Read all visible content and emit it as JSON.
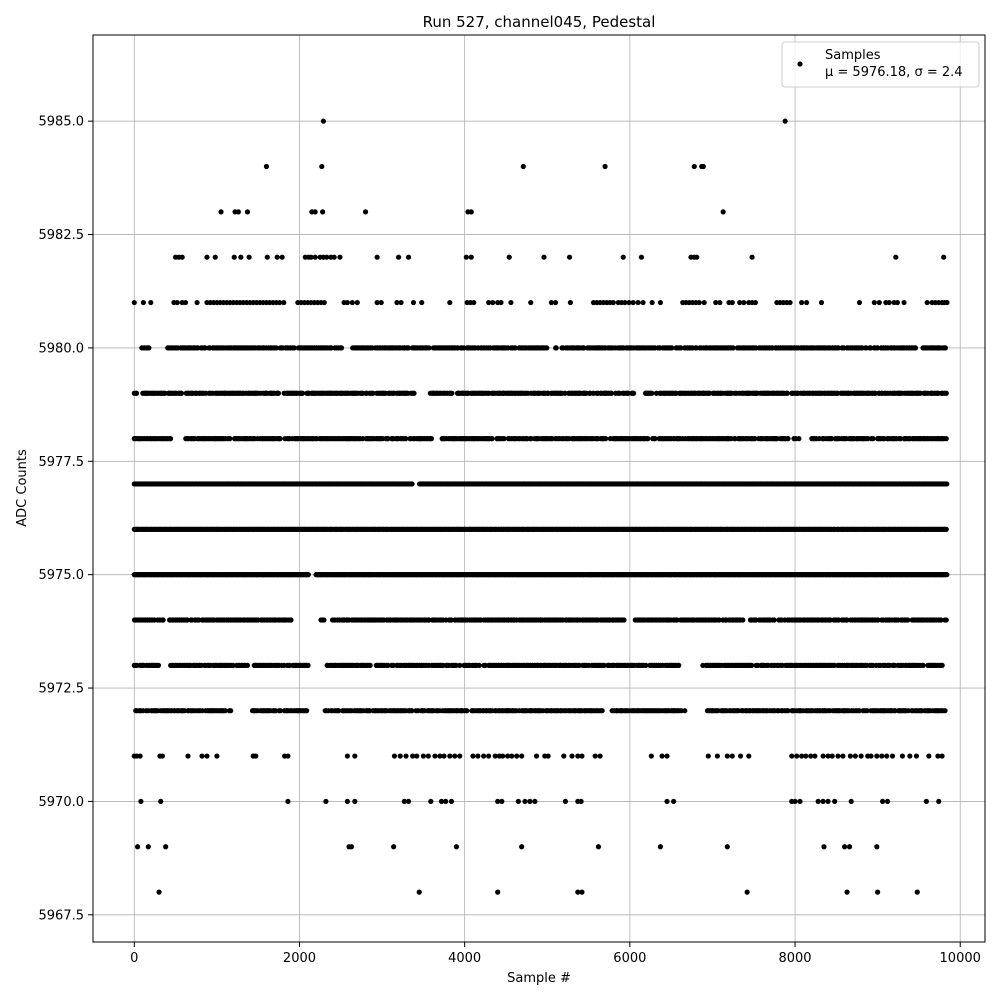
{
  "chart_data": {
    "type": "scatter",
    "title": "Run 527, channel045, Pedestal",
    "xlabel": "Sample #",
    "ylabel": "ADC Counts",
    "xlim": [
      -500,
      10300
    ],
    "ylim": [
      5966.9,
      5986.9
    ],
    "x_ticks": [
      0,
      2000,
      4000,
      6000,
      8000,
      10000
    ],
    "x_tick_labels": [
      "0",
      "2000",
      "4000",
      "6000",
      "8000",
      "10000"
    ],
    "y_ticks": [
      5967.5,
      5970.0,
      5972.5,
      5975.0,
      5977.5,
      5980.0,
      5982.5,
      5985.0
    ],
    "y_tick_labels": [
      "5967.5",
      "5970.0",
      "5972.5",
      "5975.0",
      "5977.5",
      "5980.0",
      "5982.5",
      "5985.0"
    ],
    "grid": true,
    "legend": {
      "placement": "top-right",
      "entries": [
        "Samples"
      ],
      "stats_label": "μ = 5976.18, σ = 2.4"
    },
    "series": [
      {
        "name": "Samples",
        "color": "#000000",
        "x_range": [
          0,
          9840
        ],
        "mean": 5976.18,
        "sigma": 2.4,
        "levels": [
          {
            "y": 5968,
            "x": [
              300,
              3450,
              4400,
              5370,
              5420,
              7420,
              8630,
              9000,
              9480
            ]
          },
          {
            "y": 5969,
            "x": [
              40,
              170,
              380,
              2600,
              2630,
              3140,
              3900,
              4690,
              5620,
              6370,
              7180,
              8350,
              8600,
              8660,
              8990
            ]
          },
          {
            "y": 5970,
            "x": [
              80,
              320,
              1860,
              2320,
              2580,
              2670,
              3270,
              3320,
              3590,
              3720,
              3770,
              3840,
              4400,
              4450,
              4650,
              4730,
              4790,
              4850,
              5220,
              5370,
              5410,
              6450,
              6530,
              7960,
              8000,
              8060,
              8280,
              8340,
              8400,
              8480,
              8680,
              9060,
              9120,
              9590,
              9740
            ]
          },
          {
            "y": 5971,
            "x": [
              0,
              30,
              70,
              310,
              340,
              650,
              820,
              880,
              1000,
              1440,
              1470,
              1820,
              1860,
              2580,
              2670,
              3150,
              3220,
              3290,
              3370,
              3420,
              3500,
              3560,
              3640,
              3700,
              3750,
              3820,
              3880,
              3940,
              4100,
              4160,
              4230,
              4290,
              4370,
              4420,
              4460,
              4520,
              4570,
              4630,
              4690,
              4870,
              4970,
              5010,
              5200,
              5300,
              5370,
              5420,
              5580,
              5640,
              6260,
              6390,
              6450,
              6950,
              7060,
              7180,
              7240,
              7340,
              7440,
              7960,
              8020,
              8080,
              8130,
              8190,
              8240,
              8340,
              8400,
              8450,
              8520,
              8580,
              8670,
              8730,
              8800,
              8880,
              8920,
              8990,
              9050,
              9110,
              9180,
              9300,
              9390,
              9470,
              9620,
              9730,
              9780
            ]
          },
          {
            "y": 5972,
            "x_start": 0,
            "x_end": 9820,
            "density": "dense",
            "gaps": [
              [
                1180,
                1420
              ],
              [
                2110,
                2310
              ],
              [
                5700,
                5780
              ],
              [
                6680,
                6920
              ],
              [
                7920,
                7950
              ]
            ]
          },
          {
            "y": 5973,
            "x_start": 0,
            "x_end": 9840,
            "density": "dense",
            "gaps": [
              [
                300,
                420
              ],
              [
                1380,
                1450
              ],
              [
                2120,
                2330
              ],
              [
                6600,
                6880
              ]
            ]
          },
          {
            "y": 5974,
            "x_start": 0,
            "x_end": 9840,
            "density": "dense",
            "gaps": [
              [
                360,
                420
              ],
              [
                1900,
                2250
              ],
              [
                2310,
                2400
              ],
              [
                5950,
                6040
              ]
            ]
          },
          {
            "y": 5975,
            "x_start": 0,
            "x_end": 9840,
            "density": "very-dense",
            "gaps": [
              [
                2120,
                2200
              ]
            ]
          },
          {
            "y": 5976,
            "x_start": 0,
            "x_end": 9840,
            "density": "very-dense",
            "gaps": []
          },
          {
            "y": 5977,
            "x_start": 0,
            "x_end": 9840,
            "density": "very-dense",
            "gaps": [
              [
                3380,
                3440
              ]
            ]
          },
          {
            "y": 5978,
            "x_start": 0,
            "x_end": 9840,
            "density": "dense",
            "gaps": [
              [
                440,
                620
              ],
              [
                3600,
                3720
              ],
              [
                8050,
                8200
              ]
            ]
          },
          {
            "y": 5979,
            "x_start": 0,
            "x_end": 9840,
            "density": "dense",
            "gaps": [
              [
                40,
                90
              ],
              [
                3390,
                3580
              ],
              [
                6060,
                6180
              ]
            ]
          },
          {
            "y": 5980,
            "x_start": 80,
            "x_end": 9840,
            "density": "dense",
            "gaps": [
              [
                200,
                400
              ],
              [
                2520,
                2640
              ],
              [
                5020,
                5080
              ],
              [
                9470,
                9540
              ]
            ]
          },
          {
            "y": 5981,
            "x": [
              0,
              110,
              200,
              480,
              520,
              580,
              620,
              760,
              880,
              920,
              960,
              1000,
              1040,
              1080,
              1120,
              1160,
              1200,
              1240,
              1280,
              1320,
              1360,
              1400,
              1440,
              1480,
              1520,
              1560,
              1600,
              1640,
              1680,
              1720,
              1760,
              1810,
              1980,
              2020,
              2060,
              2100,
              2140,
              2180,
              2220,
              2260,
              2300,
              2540,
              2580,
              2640,
              2700,
              2940,
              2990,
              3180,
              3230,
              3380,
              3480,
              3820,
              4030,
              4070,
              4110,
              4290,
              4340,
              4400,
              4440,
              4560,
              4800,
              5050,
              5100,
              5280,
              5560,
              5600,
              5640,
              5680,
              5720,
              5760,
              5800,
              5860,
              5900,
              5940,
              5990,
              6040,
              6100,
              6160,
              6270,
              6370,
              6640,
              6680,
              6720,
              6760,
              6800,
              6840,
              6900,
              7040,
              7090,
              7200,
              7240,
              7330,
              7380,
              7440,
              7480,
              7520,
              7780,
              7820,
              7860,
              7900,
              7940,
              8080,
              8140,
              8320,
              8780,
              8960,
              9020,
              9100,
              9140,
              9200,
              9240,
              9320,
              9600,
              9660,
              9700,
              9740,
              9780,
              9810,
              9840
            ]
          },
          {
            "y": 5982,
            "x": [
              500,
              540,
              580,
              880,
              980,
              1210,
              1290,
              1390,
              1610,
              1730,
              1790,
              2070,
              2110,
              2140,
              2190,
              2250,
              2290,
              2330,
              2380,
              2420,
              2490,
              2940,
              3200,
              3320,
              4020,
              4080,
              4540,
              4960,
              5270,
              5920,
              6140,
              6740,
              6780,
              6810,
              7480,
              9220,
              9800
            ]
          },
          {
            "y": 5983,
            "x": [
              1050,
              1220,
              1260,
              1370,
              2150,
              2190,
              2280,
              2800,
              4040,
              4080,
              7130
            ]
          },
          {
            "y": 5984,
            "x": [
              1600,
              2270,
              4710,
              5700,
              6780,
              6870,
              6890
            ]
          },
          {
            "y": 5985,
            "x": [
              2290,
              7880
            ]
          }
        ]
      }
    ]
  }
}
